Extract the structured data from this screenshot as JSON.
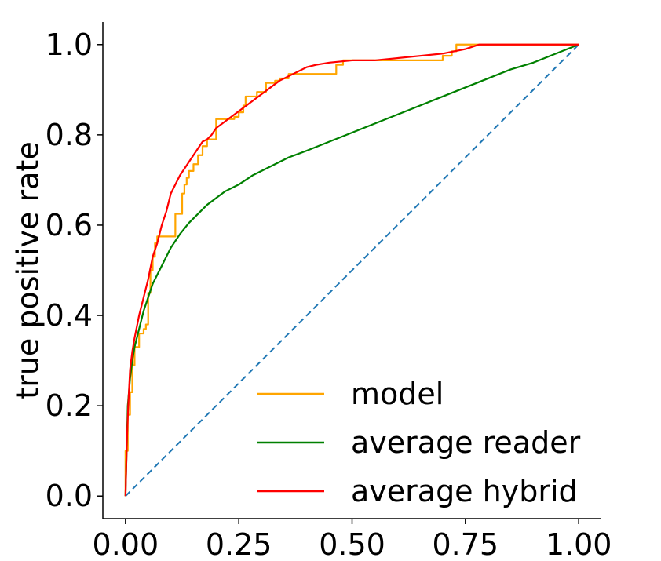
{
  "chart_data": {
    "type": "line",
    "title": "",
    "xlabel": "",
    "ylabel": "true positive rate",
    "xlim": [
      -0.05,
      1.05
    ],
    "ylim": [
      -0.05,
      1.05
    ],
    "x_ticks": [
      0.0,
      0.25,
      0.5,
      0.75,
      1.0
    ],
    "x_tick_labels": [
      "0.00",
      "0.25",
      "0.50",
      "0.75",
      "1.00"
    ],
    "y_ticks": [
      0.0,
      0.2,
      0.4,
      0.6,
      0.8,
      1.0
    ],
    "y_tick_labels": [
      "0.0",
      "0.2",
      "0.4",
      "0.6",
      "0.8",
      "1.0"
    ],
    "grid": false,
    "legend_position": "bottom-right",
    "series": [
      {
        "name": "model",
        "color": "#FFA500",
        "style": "step",
        "x": [
          0.0,
          0.0,
          0.005,
          0.005,
          0.01,
          0.01,
          0.015,
          0.015,
          0.02,
          0.02,
          0.03,
          0.03,
          0.04,
          0.04,
          0.045,
          0.045,
          0.05,
          0.05,
          0.055,
          0.055,
          0.06,
          0.06,
          0.065,
          0.065,
          0.07,
          0.07,
          0.08,
          0.08,
          0.11,
          0.11,
          0.125,
          0.125,
          0.13,
          0.13,
          0.135,
          0.135,
          0.14,
          0.14,
          0.15,
          0.15,
          0.16,
          0.16,
          0.17,
          0.17,
          0.18,
          0.18,
          0.2,
          0.2,
          0.215,
          0.215,
          0.24,
          0.24,
          0.25,
          0.25,
          0.26,
          0.26,
          0.265,
          0.265,
          0.27,
          0.27,
          0.29,
          0.29,
          0.31,
          0.31,
          0.32,
          0.32,
          0.33,
          0.33,
          0.34,
          0.34,
          0.36,
          0.36,
          0.465,
          0.465,
          0.48,
          0.48,
          0.7,
          0.7,
          0.72,
          0.72,
          0.73,
          0.73,
          0.75,
          0.75,
          1.0
        ],
        "y": [
          0.0,
          0.1,
          0.1,
          0.18,
          0.18,
          0.23,
          0.23,
          0.29,
          0.29,
          0.33,
          0.33,
          0.36,
          0.36,
          0.37,
          0.37,
          0.38,
          0.38,
          0.45,
          0.45,
          0.5,
          0.5,
          0.53,
          0.53,
          0.56,
          0.56,
          0.575,
          0.575,
          0.575,
          0.575,
          0.625,
          0.625,
          0.67,
          0.67,
          0.69,
          0.69,
          0.705,
          0.705,
          0.72,
          0.72,
          0.735,
          0.735,
          0.755,
          0.755,
          0.775,
          0.775,
          0.79,
          0.79,
          0.835,
          0.835,
          0.835,
          0.835,
          0.84,
          0.84,
          0.85,
          0.85,
          0.865,
          0.865,
          0.885,
          0.885,
          0.885,
          0.885,
          0.895,
          0.895,
          0.915,
          0.915,
          0.915,
          0.915,
          0.92,
          0.92,
          0.925,
          0.925,
          0.935,
          0.935,
          0.955,
          0.955,
          0.965,
          0.965,
          0.975,
          0.975,
          0.985,
          0.985,
          1.0,
          1.0,
          1.0,
          1.0
        ]
      },
      {
        "name": "average reader",
        "color": "#008000",
        "style": "line",
        "x": [
          0.0,
          0.005,
          0.01,
          0.015,
          0.02,
          0.03,
          0.04,
          0.05,
          0.06,
          0.07,
          0.08,
          0.09,
          0.1,
          0.11,
          0.12,
          0.14,
          0.16,
          0.18,
          0.2,
          0.22,
          0.25,
          0.28,
          0.32,
          0.36,
          0.4,
          0.45,
          0.5,
          0.55,
          0.6,
          0.65,
          0.7,
          0.75,
          0.8,
          0.85,
          0.9,
          0.95,
          1.0
        ],
        "y": [
          0.0,
          0.2,
          0.26,
          0.3,
          0.33,
          0.37,
          0.41,
          0.44,
          0.47,
          0.49,
          0.51,
          0.53,
          0.55,
          0.565,
          0.58,
          0.605,
          0.625,
          0.645,
          0.66,
          0.675,
          0.69,
          0.71,
          0.73,
          0.75,
          0.765,
          0.785,
          0.805,
          0.825,
          0.845,
          0.865,
          0.885,
          0.905,
          0.925,
          0.945,
          0.96,
          0.98,
          1.0
        ]
      },
      {
        "name": "average hybrid",
        "color": "#FF0000",
        "style": "line",
        "x": [
          0.0,
          0.003,
          0.006,
          0.01,
          0.015,
          0.02,
          0.03,
          0.04,
          0.05,
          0.06,
          0.07,
          0.08,
          0.09,
          0.1,
          0.11,
          0.12,
          0.13,
          0.14,
          0.15,
          0.16,
          0.17,
          0.18,
          0.19,
          0.2,
          0.22,
          0.24,
          0.26,
          0.28,
          0.3,
          0.32,
          0.34,
          0.36,
          0.38,
          0.4,
          0.42,
          0.45,
          0.5,
          0.55,
          0.6,
          0.65,
          0.7,
          0.75,
          0.78,
          0.8,
          0.9,
          1.0
        ],
        "y": [
          0.0,
          0.12,
          0.2,
          0.28,
          0.32,
          0.35,
          0.4,
          0.44,
          0.48,
          0.53,
          0.56,
          0.6,
          0.63,
          0.67,
          0.69,
          0.71,
          0.725,
          0.74,
          0.755,
          0.77,
          0.785,
          0.79,
          0.8,
          0.815,
          0.83,
          0.845,
          0.86,
          0.875,
          0.89,
          0.905,
          0.92,
          0.93,
          0.94,
          0.95,
          0.955,
          0.96,
          0.965,
          0.965,
          0.97,
          0.975,
          0.98,
          0.99,
          1.0,
          1.0,
          1.0,
          1.0
        ]
      },
      {
        "name": "",
        "color": "#1F77B4",
        "style": "dashed",
        "x": [
          0.0,
          1.0
        ],
        "y": [
          0.0,
          1.0
        ]
      }
    ]
  }
}
